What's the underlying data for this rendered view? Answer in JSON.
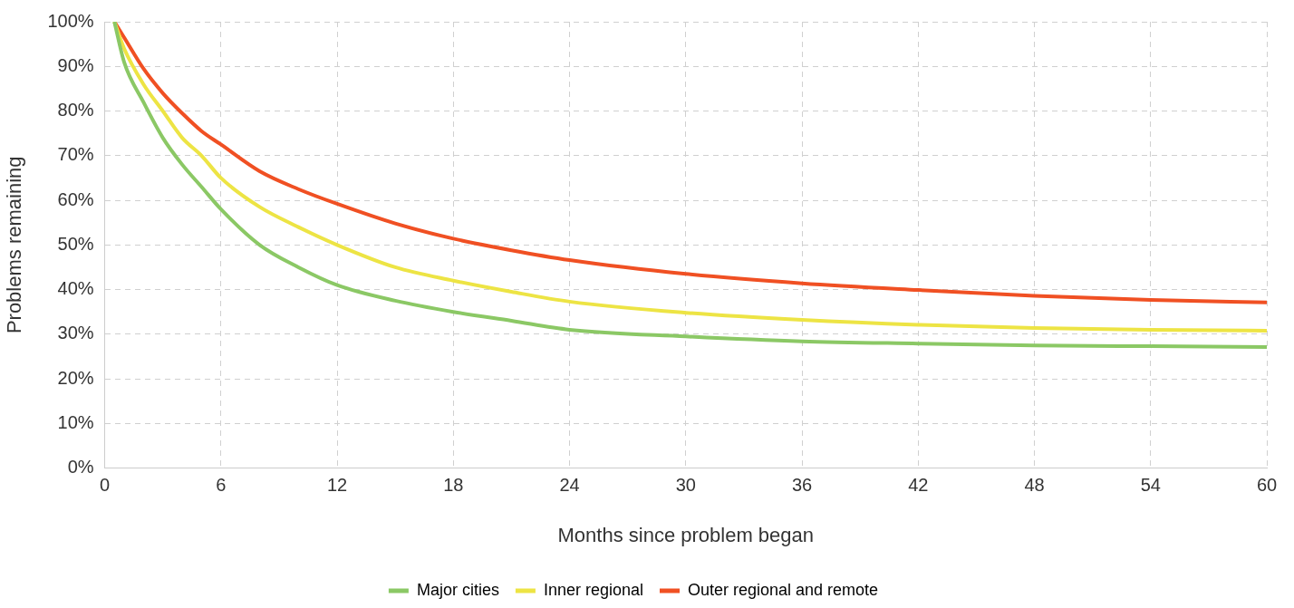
{
  "chart_data": {
    "type": "line",
    "xlabel": "Months since problem began",
    "ylabel": "Problems remaining",
    "x": [
      0.5,
      1,
      2,
      3,
      4,
      5,
      6,
      8,
      10,
      12,
      15,
      18,
      21,
      24,
      30,
      36,
      42,
      48,
      54,
      60
    ],
    "series": [
      {
        "name": "Major cities",
        "color": "#8bc865",
        "values": [
          100,
          91,
          82,
          74,
          68,
          63,
          58,
          50,
          45,
          41,
          37.5,
          35,
          33,
          31,
          29.5,
          28.4,
          27.9,
          27.5,
          27.3,
          27.1
        ]
      },
      {
        "name": "Inner regional",
        "color": "#ede444",
        "values": [
          100,
          94,
          86,
          80,
          74,
          70,
          65,
          58.5,
          54,
          50,
          45,
          42,
          39.5,
          37.3,
          34.8,
          33.2,
          32.1,
          31.4,
          31,
          30.8
        ]
      },
      {
        "name": "Outer regional and remote",
        "color": "#f05023",
        "values": [
          100,
          96.5,
          89.5,
          84,
          79.5,
          75.5,
          72.5,
          66.5,
          62.5,
          59.2,
          54.8,
          51.4,
          48.8,
          46.6,
          43.5,
          41.4,
          39.9,
          38.6,
          37.7,
          37.1
        ]
      }
    ],
    "xlim": [
      0,
      60
    ],
    "xticks": [
      0,
      6,
      12,
      18,
      24,
      30,
      36,
      42,
      48,
      54,
      60
    ],
    "ylim": [
      0,
      100
    ],
    "yticks": [
      {
        "value": 0,
        "label": "0%"
      },
      {
        "value": 10,
        "label": "10%"
      },
      {
        "value": 20,
        "label": "20%"
      },
      {
        "value": 30,
        "label": "30%"
      },
      {
        "value": 40,
        "label": "40%"
      },
      {
        "value": 50,
        "label": "50%"
      },
      {
        "value": 60,
        "label": "60%"
      },
      {
        "value": 70,
        "label": "70%"
      },
      {
        "value": 80,
        "label": "80%"
      },
      {
        "value": 90,
        "label": "90%"
      },
      {
        "value": 100,
        "label": "100%"
      }
    ],
    "grid": true,
    "legend": "bottom",
    "marker": "none",
    "line_style": "solid"
  }
}
